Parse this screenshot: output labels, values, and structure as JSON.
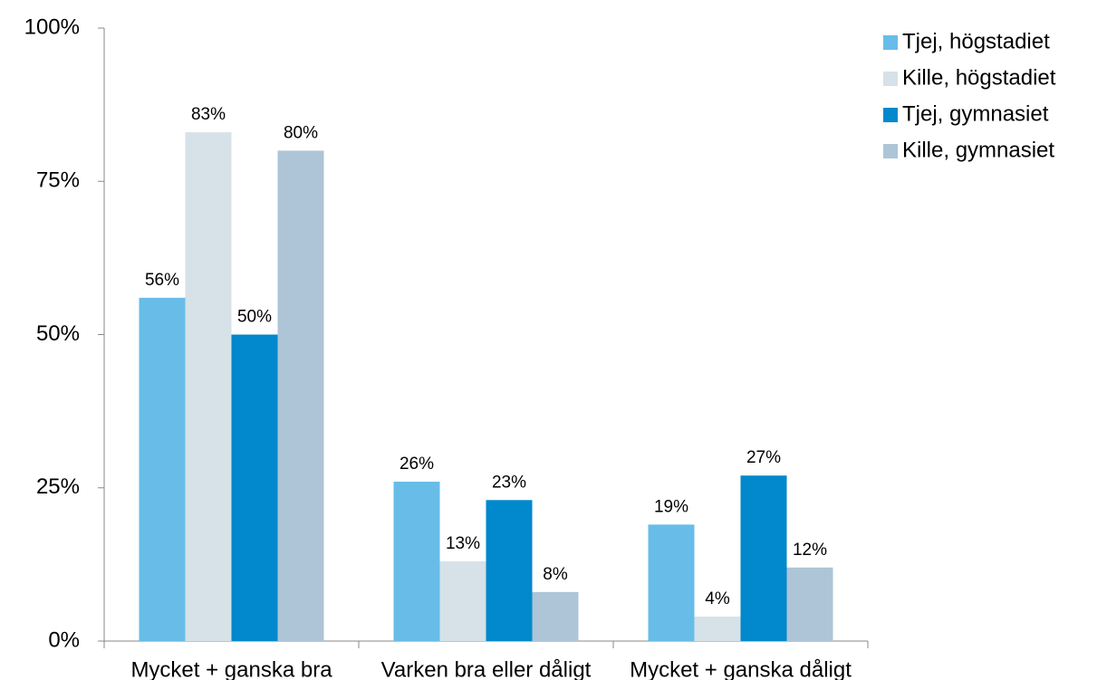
{
  "chart_data": {
    "type": "bar",
    "categories": [
      "Mycket + ganska bra",
      "Varken bra eller dåligt",
      "Mycket + ganska dåligt"
    ],
    "series": [
      {
        "name": "Tjej, högstadiet",
        "color": "#67bde8",
        "values": [
          56,
          26,
          19
        ],
        "value_labels": [
          "56%",
          "26%",
          "19%"
        ]
      },
      {
        "name": "Kille, högstadiet",
        "color": "#d6e2e8",
        "values": [
          83,
          13,
          4
        ],
        "value_labels": [
          "83%",
          "13%",
          "4%"
        ]
      },
      {
        "name": "Tjej, gymnasiet",
        "color": "#0288cc",
        "values": [
          50,
          23,
          27
        ],
        "value_labels": [
          "50%",
          "23%",
          "27%"
        ]
      },
      {
        "name": "Kille, gymnasiet",
        "color": "#adc5d6",
        "values": [
          80,
          8,
          12
        ],
        "value_labels": [
          "80%",
          "8%",
          "12%"
        ]
      }
    ],
    "ylim": [
      0,
      100
    ],
    "yticks": [
      {
        "value": 0,
        "label": "0%"
      },
      {
        "value": 25,
        "label": "25%"
      },
      {
        "value": 50,
        "label": "50%"
      },
      {
        "value": 75,
        "label": "75%"
      },
      {
        "value": 100,
        "label": "100%"
      }
    ],
    "grid": false,
    "legend": "right"
  }
}
